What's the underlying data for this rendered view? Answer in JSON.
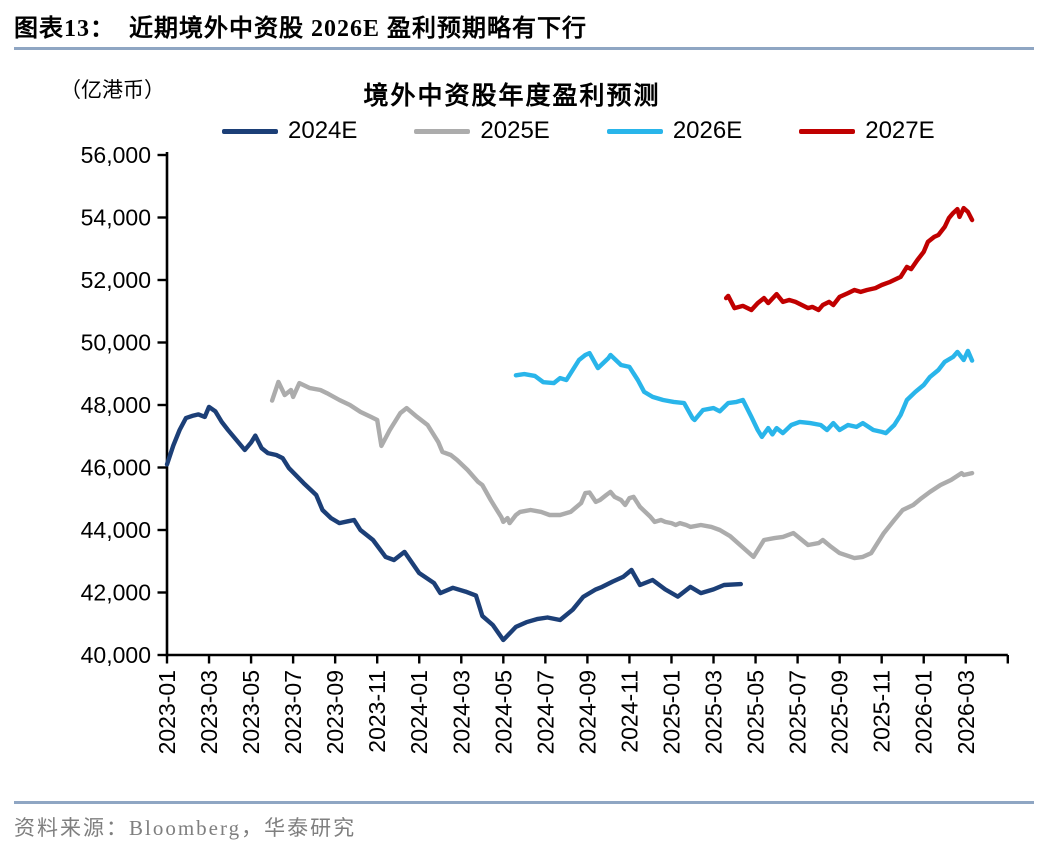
{
  "header": {
    "title": "图表13：  近期境外中资股 2026E 盈利预期略有下行"
  },
  "footer": {
    "source": "资料来源：Bloomberg，华泰研究"
  },
  "colors": {
    "divider": "#8FA6C3",
    "axis": "#000000",
    "source_text": "#7F7F7F",
    "background": "#FFFFFF"
  },
  "chart_data": {
    "type": "line",
    "title": "境外中资股年度盈利预测",
    "unit_label": "（亿港币）",
    "xlabel": "",
    "ylabel": "",
    "ylim": [
      40000,
      56000
    ],
    "y_tick_step": 2000,
    "grid": false,
    "legend_position": "top",
    "x_axis_note": "x values are months since 2023-01; ticks every 2 months",
    "x_months_range": [
      0,
      40
    ],
    "y_ticks": [
      "40,000",
      "42,000",
      "44,000",
      "46,000",
      "48,000",
      "50,000",
      "52,000",
      "54,000",
      "56,000"
    ],
    "x_tick_labels": [
      "2023-01",
      "2023-03",
      "2023-05",
      "2023-07",
      "2023-09",
      "2023-11",
      "2024-01",
      "2024-03",
      "2024-05",
      "2024-07",
      "2024-09",
      "2024-11",
      "2025-01",
      "2025-03",
      "2025-05",
      "2025-07",
      "2025-09",
      "2025-11",
      "2026-01",
      "2026-03"
    ],
    "series": [
      {
        "name": "2024E",
        "color": "#1C3F77",
        "points": [
          [
            0,
            46100
          ],
          [
            0.3,
            46700
          ],
          [
            0.6,
            47200
          ],
          [
            0.9,
            47580
          ],
          [
            1.2,
            47650
          ],
          [
            1.5,
            47700
          ],
          [
            1.8,
            47620
          ],
          [
            2.0,
            47940
          ],
          [
            2.3,
            47800
          ],
          [
            2.6,
            47460
          ],
          [
            2.9,
            47200
          ],
          [
            3.3,
            46880
          ],
          [
            3.7,
            46560
          ],
          [
            4.0,
            46800
          ],
          [
            4.2,
            47020
          ],
          [
            4.5,
            46620
          ],
          [
            4.8,
            46460
          ],
          [
            5.2,
            46400
          ],
          [
            5.5,
            46300
          ],
          [
            5.8,
            45980
          ],
          [
            6.5,
            45500
          ],
          [
            7.1,
            45120
          ],
          [
            7.4,
            44640
          ],
          [
            7.8,
            44380
          ],
          [
            8.2,
            44220
          ],
          [
            8.6,
            44280
          ],
          [
            8.9,
            44320
          ],
          [
            9.2,
            44000
          ],
          [
            9.8,
            43680
          ],
          [
            10.4,
            43140
          ],
          [
            10.8,
            43040
          ],
          [
            11.3,
            43300
          ],
          [
            12.0,
            42620
          ],
          [
            12.7,
            42300
          ],
          [
            13.0,
            41980
          ],
          [
            13.6,
            42150
          ],
          [
            14.2,
            42030
          ],
          [
            14.7,
            41900
          ],
          [
            15.0,
            41250
          ],
          [
            15.5,
            40960
          ],
          [
            16.0,
            40480
          ],
          [
            16.6,
            40900
          ],
          [
            17.1,
            41050
          ],
          [
            17.6,
            41150
          ],
          [
            18.1,
            41200
          ],
          [
            18.7,
            41120
          ],
          [
            19.3,
            41450
          ],
          [
            19.8,
            41860
          ],
          [
            20.4,
            42100
          ],
          [
            20.7,
            42180
          ],
          [
            21.2,
            42350
          ],
          [
            21.7,
            42500
          ],
          [
            22.1,
            42720
          ],
          [
            22.5,
            42240
          ],
          [
            23.1,
            42400
          ],
          [
            23.7,
            42100
          ],
          [
            24.3,
            41870
          ],
          [
            24.9,
            42180
          ],
          [
            25.4,
            41980
          ],
          [
            26.0,
            42100
          ],
          [
            26.5,
            42240
          ],
          [
            27.3,
            42270
          ]
        ]
      },
      {
        "name": "2025E",
        "color": "#ACACAC",
        "points": [
          [
            5.0,
            48140
          ],
          [
            5.3,
            48740
          ],
          [
            5.6,
            48320
          ],
          [
            5.9,
            48480
          ],
          [
            6.0,
            48260
          ],
          [
            6.3,
            48700
          ],
          [
            6.8,
            48540
          ],
          [
            7.3,
            48480
          ],
          [
            7.6,
            48380
          ],
          [
            8.2,
            48160
          ],
          [
            8.7,
            48000
          ],
          [
            9.2,
            47780
          ],
          [
            9.7,
            47620
          ],
          [
            10.0,
            47520
          ],
          [
            10.2,
            46690
          ],
          [
            10.6,
            47200
          ],
          [
            11.1,
            47740
          ],
          [
            11.4,
            47900
          ],
          [
            11.9,
            47620
          ],
          [
            12.4,
            47360
          ],
          [
            12.9,
            46820
          ],
          [
            13.1,
            46500
          ],
          [
            13.5,
            46400
          ],
          [
            13.8,
            46240
          ],
          [
            14.3,
            45920
          ],
          [
            14.8,
            45540
          ],
          [
            15.0,
            45440
          ],
          [
            15.4,
            44960
          ],
          [
            15.6,
            44740
          ],
          [
            15.9,
            44420
          ],
          [
            16.0,
            44260
          ],
          [
            16.2,
            44380
          ],
          [
            16.3,
            44220
          ],
          [
            16.6,
            44480
          ],
          [
            16.8,
            44580
          ],
          [
            17.3,
            44640
          ],
          [
            17.8,
            44580
          ],
          [
            18.2,
            44480
          ],
          [
            18.7,
            44480
          ],
          [
            19.2,
            44580
          ],
          [
            19.7,
            44860
          ],
          [
            19.9,
            45180
          ],
          [
            20.1,
            45200
          ],
          [
            20.4,
            44900
          ],
          [
            20.6,
            44960
          ],
          [
            20.9,
            45120
          ],
          [
            21.1,
            45220
          ],
          [
            21.3,
            45060
          ],
          [
            21.6,
            44960
          ],
          [
            21.8,
            44800
          ],
          [
            22.0,
            45020
          ],
          [
            22.2,
            45060
          ],
          [
            22.5,
            44740
          ],
          [
            23.0,
            44420
          ],
          [
            23.2,
            44260
          ],
          [
            23.5,
            44320
          ],
          [
            23.7,
            44260
          ],
          [
            24.0,
            44220
          ],
          [
            24.2,
            44160
          ],
          [
            24.4,
            44220
          ],
          [
            24.7,
            44160
          ],
          [
            24.9,
            44100
          ],
          [
            25.4,
            44160
          ],
          [
            25.9,
            44100
          ],
          [
            26.3,
            44000
          ],
          [
            26.8,
            43800
          ],
          [
            27.3,
            43500
          ],
          [
            27.9,
            43140
          ],
          [
            28.4,
            43680
          ],
          [
            28.9,
            43740
          ],
          [
            29.3,
            43780
          ],
          [
            29.8,
            43900
          ],
          [
            30.5,
            43520
          ],
          [
            31.0,
            43580
          ],
          [
            31.2,
            43680
          ],
          [
            31.6,
            43460
          ],
          [
            32.0,
            43260
          ],
          [
            32.7,
            43100
          ],
          [
            33.1,
            43140
          ],
          [
            33.5,
            43260
          ],
          [
            34.1,
            43900
          ],
          [
            34.6,
            44320
          ],
          [
            35.0,
            44640
          ],
          [
            35.5,
            44800
          ],
          [
            35.9,
            45020
          ],
          [
            36.3,
            45220
          ],
          [
            36.8,
            45440
          ],
          [
            37.3,
            45600
          ],
          [
            37.8,
            45820
          ],
          [
            37.9,
            45760
          ],
          [
            38.3,
            45820
          ]
        ]
      },
      {
        "name": "2026E",
        "color": "#29B5EA",
        "points": [
          [
            16.6,
            48950
          ],
          [
            17.0,
            48990
          ],
          [
            17.5,
            48930
          ],
          [
            17.9,
            48730
          ],
          [
            18.4,
            48700
          ],
          [
            18.7,
            48860
          ],
          [
            19.0,
            48800
          ],
          [
            19.6,
            49440
          ],
          [
            19.9,
            49600
          ],
          [
            20.1,
            49660
          ],
          [
            20.5,
            49180
          ],
          [
            21.0,
            49500
          ],
          [
            21.1,
            49600
          ],
          [
            21.6,
            49280
          ],
          [
            22.0,
            49220
          ],
          [
            22.4,
            48800
          ],
          [
            22.7,
            48420
          ],
          [
            23.1,
            48260
          ],
          [
            23.6,
            48160
          ],
          [
            24.1,
            48100
          ],
          [
            24.6,
            48060
          ],
          [
            25.0,
            47580
          ],
          [
            25.1,
            47520
          ],
          [
            25.5,
            47840
          ],
          [
            26.0,
            47900
          ],
          [
            26.3,
            47800
          ],
          [
            26.7,
            48060
          ],
          [
            27.1,
            48100
          ],
          [
            27.4,
            48160
          ],
          [
            27.8,
            47620
          ],
          [
            28.1,
            47200
          ],
          [
            28.3,
            46980
          ],
          [
            28.6,
            47260
          ],
          [
            28.8,
            47060
          ],
          [
            29.0,
            47260
          ],
          [
            29.3,
            47100
          ],
          [
            29.7,
            47360
          ],
          [
            30.1,
            47460
          ],
          [
            30.6,
            47420
          ],
          [
            31.1,
            47360
          ],
          [
            31.4,
            47200
          ],
          [
            31.7,
            47420
          ],
          [
            32.0,
            47200
          ],
          [
            32.4,
            47360
          ],
          [
            32.8,
            47300
          ],
          [
            33.1,
            47420
          ],
          [
            33.6,
            47200
          ],
          [
            34.0,
            47140
          ],
          [
            34.2,
            47100
          ],
          [
            34.6,
            47360
          ],
          [
            34.9,
            47680
          ],
          [
            35.2,
            48160
          ],
          [
            35.6,
            48420
          ],
          [
            36.0,
            48640
          ],
          [
            36.3,
            48900
          ],
          [
            36.7,
            49120
          ],
          [
            37.0,
            49380
          ],
          [
            37.4,
            49540
          ],
          [
            37.6,
            49700
          ],
          [
            37.9,
            49440
          ],
          [
            38.1,
            49730
          ],
          [
            38.3,
            49420
          ]
        ]
      },
      {
        "name": "2027E",
        "color": "#C00000",
        "points": [
          [
            26.6,
            51420
          ],
          [
            26.7,
            51490
          ],
          [
            27.0,
            51100
          ],
          [
            27.4,
            51170
          ],
          [
            27.8,
            51040
          ],
          [
            28.1,
            51260
          ],
          [
            28.4,
            51420
          ],
          [
            28.6,
            51260
          ],
          [
            29.0,
            51550
          ],
          [
            29.3,
            51300
          ],
          [
            29.6,
            51360
          ],
          [
            29.9,
            51300
          ],
          [
            30.2,
            51200
          ],
          [
            30.5,
            51100
          ],
          [
            30.7,
            51140
          ],
          [
            31.0,
            51040
          ],
          [
            31.2,
            51200
          ],
          [
            31.5,
            51300
          ],
          [
            31.7,
            51200
          ],
          [
            32.0,
            51460
          ],
          [
            32.4,
            51580
          ],
          [
            32.7,
            51680
          ],
          [
            33.0,
            51620
          ],
          [
            33.3,
            51680
          ],
          [
            33.7,
            51740
          ],
          [
            34.0,
            51840
          ],
          [
            34.4,
            51940
          ],
          [
            34.9,
            52100
          ],
          [
            35.2,
            52420
          ],
          [
            35.4,
            52350
          ],
          [
            35.7,
            52640
          ],
          [
            36.0,
            52900
          ],
          [
            36.2,
            53220
          ],
          [
            36.5,
            53380
          ],
          [
            36.7,
            53440
          ],
          [
            37.0,
            53700
          ],
          [
            37.2,
            53980
          ],
          [
            37.4,
            54140
          ],
          [
            37.6,
            54270
          ],
          [
            37.7,
            54020
          ],
          [
            37.9,
            54300
          ],
          [
            38.1,
            54180
          ],
          [
            38.3,
            53920
          ]
        ]
      }
    ]
  }
}
